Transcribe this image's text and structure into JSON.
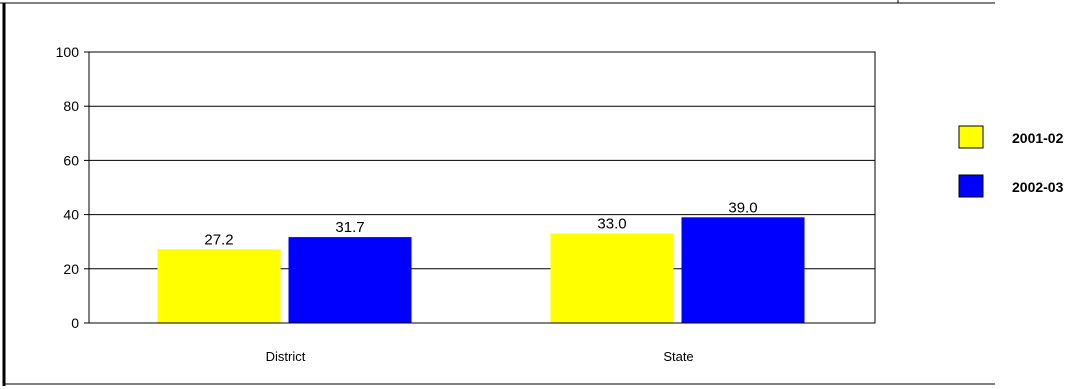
{
  "chart_data": {
    "type": "bar",
    "title": "",
    "xlabel": "",
    "ylabel": "",
    "categories": [
      "District",
      "State"
    ],
    "series": [
      {
        "name": "2001-02",
        "values": [
          27.2,
          33.0
        ],
        "labels": [
          "27.2",
          "33.0"
        ],
        "color": "#ffff00"
      },
      {
        "name": "2002-03",
        "values": [
          31.7,
          39.0
        ],
        "labels": [
          "31.7",
          "39.0"
        ],
        "color": "#0000ff"
      }
    ],
    "ylim": [
      0,
      100
    ],
    "yticks": [
      0,
      20,
      40,
      60,
      80,
      100
    ],
    "grid": true,
    "legend": "right"
  }
}
